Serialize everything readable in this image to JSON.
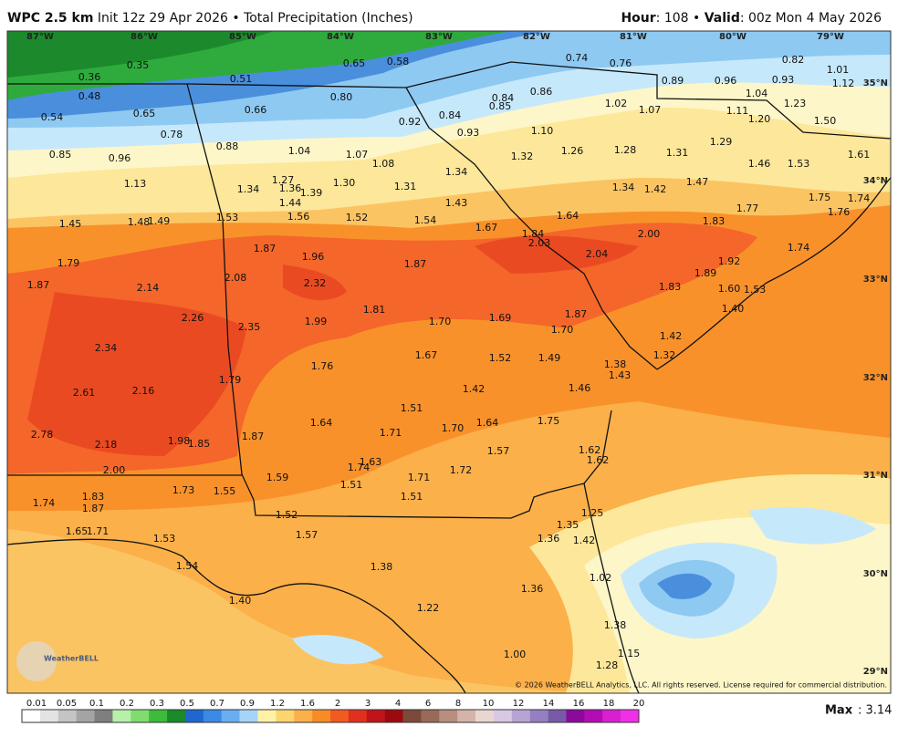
{
  "header": {
    "title": "WPC 2.5 km",
    "init": "Init 12z 29 Apr 2026",
    "product": "• Total Precipitation (Inches)",
    "hour_key": "Hour",
    "hour": ": 108 •",
    "valid_key": " Valid",
    "valid": ": 00z Mon 4 May 2026"
  },
  "map": {
    "longitudes": [
      "87°W",
      "86°W",
      "85°W",
      "84°W",
      "83°W",
      "82°W",
      "81°W",
      "80°W",
      "79°W"
    ],
    "latitudes": [
      "35°N",
      "34°N",
      "33°N",
      "32°N",
      "31°N",
      "30°N",
      "29°N"
    ],
    "labels": [
      "0.35",
      "0.36",
      "0.48",
      "0.54",
      "0.65",
      "0.78",
      "0.85",
      "0.96",
      "0.51",
      "0.66",
      "0.88",
      "0.65",
      "0.58",
      "0.80",
      "0.74",
      "0.76",
      "0.82",
      "1.01",
      "0.89",
      "0.96",
      "0.93",
      "1.12",
      "0.84",
      "0.86",
      "0.85",
      "1.04",
      "1.23",
      "1.02",
      "1.07",
      "1.11",
      "1.20",
      "1.50",
      "0.92",
      "0.84",
      "0.93",
      "1.10",
      "1.04",
      "1.07",
      "1.08",
      "1.32",
      "1.26",
      "1.28",
      "1.31",
      "1.29",
      "1.61",
      "1.46",
      "1.53",
      "1.13",
      "1.34",
      "1.27",
      "1.36",
      "1.39",
      "1.30",
      "1.31",
      "1.34",
      "1.34",
      "1.42",
      "1.47",
      "1.75",
      "1.74",
      "1.44",
      "1.43",
      "1.76",
      "1.77",
      "1.53",
      "1.56",
      "1.52",
      "1.54",
      "1.64",
      "1.45",
      "1.48",
      "1.49",
      "1.67",
      "1.83",
      "1.84",
      "2.00",
      "2.03",
      "1.87",
      "1.96",
      "2.04",
      "1.92",
      "1.74",
      "1.79",
      "1.87",
      "1.89",
      "2.08",
      "2.32",
      "1.87",
      "2.14",
      "1.83",
      "1.60",
      "1.53",
      "1.81",
      "1.40",
      "1.87",
      "2.26",
      "1.99",
      "1.70",
      "1.69",
      "2.35",
      "1.70",
      "2.34",
      "1.42",
      "1.67",
      "1.52",
      "1.49",
      "1.32",
      "1.38",
      "1.76",
      "1.43",
      "1.79",
      "2.61",
      "2.16",
      "1.42",
      "1.46",
      "1.51",
      "1.64",
      "1.71",
      "1.70",
      "1.64",
      "1.75",
      "2.78",
      "1.87",
      "1.98",
      "1.85",
      "2.18",
      "1.57",
      "1.62",
      "1.63",
      "1.74",
      "1.62",
      "1.72",
      "2.00",
      "1.71",
      "1.59",
      "1.51",
      "1.73",
      "1.55",
      "1.51",
      "1.83",
      "1.74",
      "1.87",
      "1.52",
      "1.25",
      "1.35",
      "1.65",
      "1.71",
      "1.57",
      "1.53",
      "1.36",
      "1.42",
      "1.54",
      "1.38",
      "1.02",
      "1.36",
      "1.40",
      "1.22",
      "1.38",
      "1.00",
      "1.15",
      "1.28"
    ],
    "copyright": "© 2026 WeatherBELL Analytics, LLC. All rights reserved. License required for commercial distribution.",
    "logo": "WeatherBELL"
  },
  "colorbar": {
    "ticks": [
      "0.01",
      "0.05",
      "0.1",
      "0.2",
      "0.3",
      "0.5",
      "0.7",
      "0.9",
      "1.2",
      "1.6",
      "2",
      "3",
      "4",
      "6",
      "8",
      "10",
      "12",
      "14",
      "16",
      "18",
      "20"
    ]
  },
  "footer": {
    "max_key": "Max",
    "max_value": ": 3.14"
  }
}
